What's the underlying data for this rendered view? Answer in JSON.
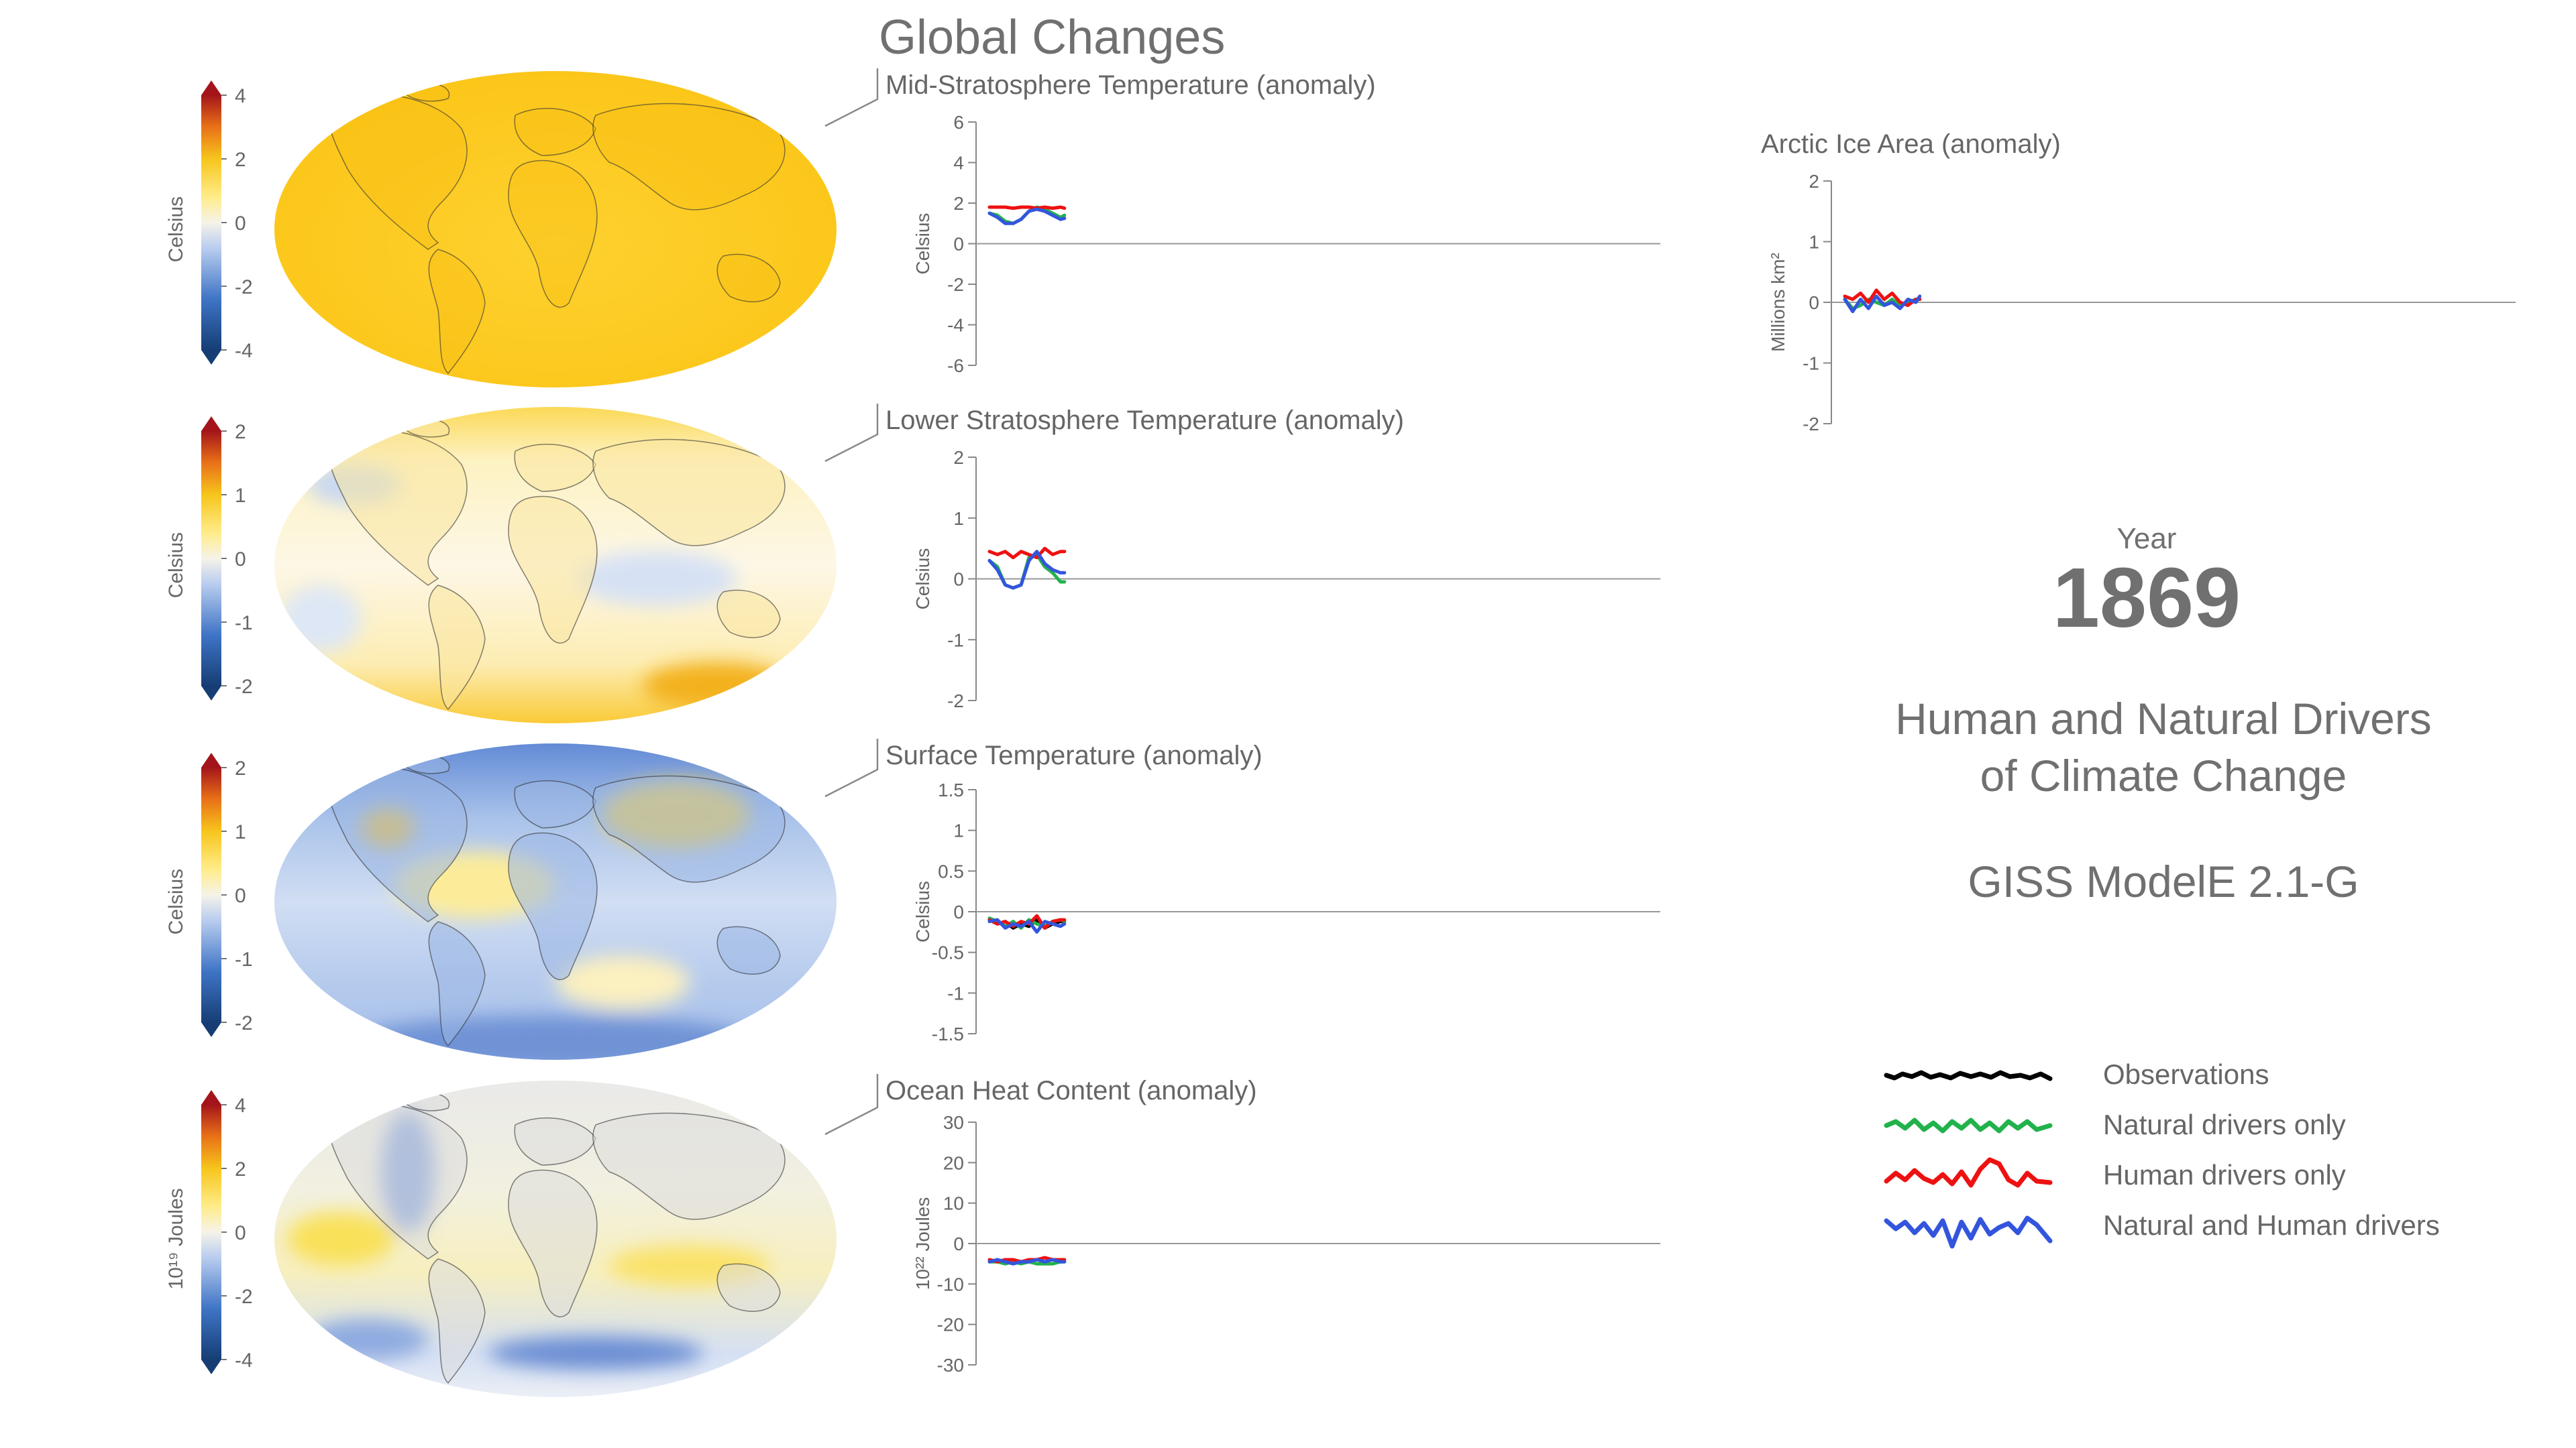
{
  "header": {
    "title": "Global Changes"
  },
  "info": {
    "year_label": "Year",
    "year": "1869",
    "subtitle_line1": "Human and Natural Drivers",
    "subtitle_line2": "of Climate Change",
    "model": "GISS ModelE 2.1-G"
  },
  "colors": {
    "observations": "#000000",
    "natural": "#22b24c",
    "human": "#ee1111",
    "both": "#3355dd",
    "text": "#666666"
  },
  "legend": {
    "items": [
      {
        "label": "Observations",
        "color": "#000000"
      },
      {
        "label": "Natural drivers only",
        "color": "#22b24c"
      },
      {
        "label": "Human drivers only",
        "color": "#ee1111"
      },
      {
        "label": "Natural and Human drivers",
        "color": "#3355dd"
      }
    ]
  },
  "maps": [
    {
      "name": "mid-strat-map",
      "colorbar_label": "Celsius",
      "colorbar_ticks": [
        "4",
        "2",
        "0",
        "-2",
        "-4"
      ],
      "dominant": "warm-uniform"
    },
    {
      "name": "lower-strat-map",
      "colorbar_label": "Celsius",
      "colorbar_ticks": [
        "2",
        "1",
        "0",
        "-1",
        "-2"
      ],
      "dominant": "pale-yellow"
    },
    {
      "name": "surface-map",
      "colorbar_label": "Celsius",
      "colorbar_ticks": [
        "2",
        "1",
        "0",
        "-1",
        "-2"
      ],
      "dominant": "cool-blue"
    },
    {
      "name": "ocean-heat-map",
      "colorbar_label": "10¹⁹ Joules",
      "colorbar_ticks": [
        "4",
        "2",
        "0",
        "-2",
        "-4"
      ],
      "dominant": "grey-land-mixed-ocean"
    }
  ],
  "chart_data": [
    {
      "type": "line",
      "title": "Mid-Stratosphere Temperature (anomaly)",
      "ylabel": "Celsius",
      "ylim": [
        -6,
        6
      ],
      "yticks": [
        6,
        4,
        2,
        0,
        -2,
        -4,
        -6
      ],
      "ytick_labels": [
        "6",
        "4",
        "2",
        "0",
        "-2",
        "-4",
        "-6"
      ],
      "xlim": [
        1850,
        2020
      ],
      "x": [
        1850,
        1852,
        1854,
        1856,
        1858,
        1860,
        1862,
        1864,
        1866,
        1868,
        1869
      ],
      "series": [
        {
          "key": "natural",
          "values": [
            1.5,
            1.4,
            1.1,
            1.0,
            1.2,
            1.6,
            1.8,
            1.7,
            1.5,
            1.3,
            1.4
          ]
        },
        {
          "key": "human",
          "values": [
            1.8,
            1.8,
            1.8,
            1.75,
            1.8,
            1.8,
            1.75,
            1.8,
            1.75,
            1.8,
            1.75
          ]
        },
        {
          "key": "both",
          "values": [
            1.5,
            1.3,
            1.0,
            1.0,
            1.2,
            1.6,
            1.7,
            1.6,
            1.4,
            1.2,
            1.25
          ]
        }
      ]
    },
    {
      "type": "line",
      "title": "Lower Stratosphere Temperature (anomaly)",
      "ylabel": "Celsius",
      "ylim": [
        -2,
        2
      ],
      "yticks": [
        2,
        1,
        0,
        -1,
        -2
      ],
      "ytick_labels": [
        "2",
        "1",
        "0",
        "-1",
        "-2"
      ],
      "xlim": [
        1850,
        2020
      ],
      "x": [
        1850,
        1852,
        1854,
        1856,
        1858,
        1860,
        1862,
        1864,
        1866,
        1868,
        1869
      ],
      "series": [
        {
          "key": "natural",
          "values": [
            0.3,
            0.2,
            -0.1,
            -0.15,
            -0.1,
            0.35,
            0.4,
            0.2,
            0.1,
            -0.05,
            -0.05
          ]
        },
        {
          "key": "human",
          "values": [
            0.45,
            0.4,
            0.45,
            0.35,
            0.45,
            0.4,
            0.35,
            0.5,
            0.4,
            0.45,
            0.45
          ]
        },
        {
          "key": "both",
          "values": [
            0.3,
            0.15,
            -0.1,
            -0.15,
            -0.1,
            0.3,
            0.45,
            0.25,
            0.15,
            0.1,
            0.1
          ]
        }
      ]
    },
    {
      "type": "line",
      "title": "Surface Temperature (anomaly)",
      "ylabel": "Celsius",
      "ylim": [
        -1.5,
        1.5
      ],
      "yticks": [
        1.5,
        1,
        0.5,
        0,
        -0.5,
        -1,
        -1.5
      ],
      "ytick_labels": [
        "1.5",
        "1",
        "0.5",
        "0",
        "-0.5",
        "-1",
        "-1.5"
      ],
      "xlim": [
        1850,
        2020
      ],
      "x": [
        1850,
        1852,
        1854,
        1856,
        1858,
        1860,
        1862,
        1864,
        1866,
        1868,
        1869
      ],
      "series": [
        {
          "key": "observations",
          "values": [
            -0.1,
            -0.15,
            -0.12,
            -0.2,
            -0.15,
            -0.18,
            -0.1,
            -0.2,
            -0.15,
            -0.12,
            -0.12
          ]
        },
        {
          "key": "natural",
          "values": [
            -0.08,
            -0.12,
            -0.18,
            -0.12,
            -0.2,
            -0.1,
            -0.15,
            -0.18,
            -0.12,
            -0.1,
            -0.12
          ]
        },
        {
          "key": "human",
          "values": [
            -0.1,
            -0.15,
            -0.12,
            -0.18,
            -0.12,
            -0.15,
            -0.05,
            -0.2,
            -0.12,
            -0.1,
            -0.1
          ]
        },
        {
          "key": "both",
          "values": [
            -0.12,
            -0.1,
            -0.2,
            -0.15,
            -0.18,
            -0.12,
            -0.25,
            -0.12,
            -0.15,
            -0.18,
            -0.15
          ]
        }
      ]
    },
    {
      "type": "line",
      "title": "Ocean Heat Content (anomaly)",
      "ylabel": "10²² Joules",
      "ylim": [
        -30,
        30
      ],
      "yticks": [
        30,
        20,
        10,
        0,
        -10,
        -20,
        -30
      ],
      "ytick_labels": [
        "30",
        "20",
        "10",
        "0",
        "-10",
        "-20",
        "-30"
      ],
      "xlim": [
        1850,
        2020
      ],
      "x": [
        1850,
        1852,
        1854,
        1856,
        1858,
        1860,
        1862,
        1864,
        1866,
        1868,
        1869
      ],
      "series": [
        {
          "key": "natural",
          "values": [
            -4.5,
            -4.5,
            -5,
            -4.5,
            -5,
            -4.5,
            -5,
            -5,
            -5,
            -4.5,
            -4.5
          ]
        },
        {
          "key": "human",
          "values": [
            -4,
            -4.5,
            -4,
            -4,
            -4.5,
            -4,
            -4,
            -3.5,
            -4,
            -4,
            -4
          ]
        },
        {
          "key": "both",
          "values": [
            -4.5,
            -4,
            -4.5,
            -5,
            -4.5,
            -4.5,
            -4,
            -4.5,
            -4,
            -4.5,
            -4.5
          ]
        }
      ]
    },
    {
      "type": "line",
      "title": "Arctic Ice Area (anomaly)",
      "ylabel": "Millions km²",
      "ylim": [
        -2,
        2
      ],
      "yticks": [
        2,
        1,
        0,
        -1,
        -2
      ],
      "ytick_labels": [
        "2",
        "1",
        "0",
        "-1",
        "-2"
      ],
      "xlim": [
        1850,
        2020
      ],
      "x": [
        1850,
        1852,
        1854,
        1856,
        1858,
        1860,
        1862,
        1864,
        1866,
        1868,
        1869
      ],
      "series": [
        {
          "key": "natural",
          "values": [
            0.05,
            -0.1,
            -0.05,
            0.05,
            0.0,
            -0.05,
            0.05,
            -0.05,
            0.0,
            0.05,
            0.05
          ]
        },
        {
          "key": "human",
          "values": [
            0.1,
            0.05,
            0.15,
            0.0,
            0.2,
            0.05,
            0.15,
            0.0,
            -0.05,
            0.05,
            0.05
          ]
        },
        {
          "key": "both",
          "values": [
            0.05,
            -0.15,
            0.05,
            -0.1,
            0.1,
            -0.05,
            0.0,
            -0.1,
            0.05,
            0.0,
            0.1
          ]
        }
      ]
    }
  ]
}
